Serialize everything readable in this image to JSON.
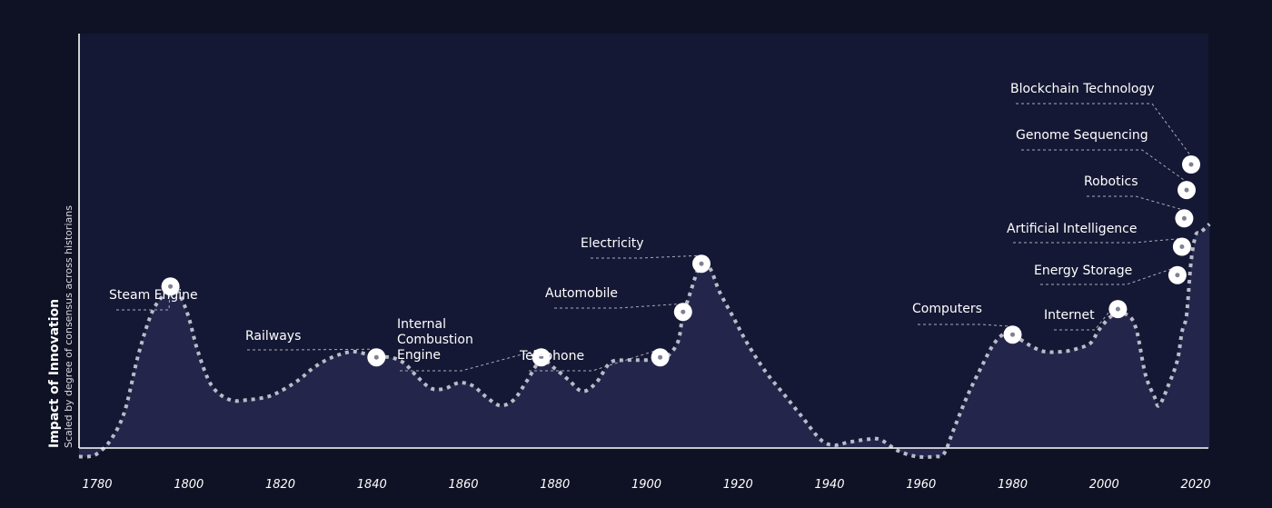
{
  "chart_data": {
    "type": "line",
    "title": "",
    "ylabel": "Impact of Innovation",
    "ylabel_subtitle": "Scaled by degree of consensus across historians",
    "xlabel": "",
    "xlim": [
      1777,
      2024
    ],
    "ylim": [
      0,
      100
    ],
    "x_ticks": [
      1780,
      1800,
      1820,
      1840,
      1860,
      1880,
      1900,
      1920,
      1940,
      1960,
      1980,
      2000,
      2020
    ],
    "grid": false,
    "series": [
      {
        "points": [
          [
            1777,
            -3
          ],
          [
            1779,
            -3
          ],
          [
            1781,
            -2
          ],
          [
            1784,
            3
          ],
          [
            1787,
            13
          ],
          [
            1790,
            33
          ],
          [
            1793,
            48
          ],
          [
            1796,
            55
          ],
          [
            1797,
            57
          ],
          [
            1799,
            54
          ],
          [
            1801,
            46
          ],
          [
            1803,
            34
          ],
          [
            1806,
            22
          ],
          [
            1810,
            17
          ],
          [
            1814,
            17
          ],
          [
            1818,
            18
          ],
          [
            1821,
            20
          ],
          [
            1825,
            24
          ],
          [
            1828,
            28
          ],
          [
            1831,
            31
          ],
          [
            1834,
            33
          ],
          [
            1837,
            34
          ],
          [
            1840,
            33
          ],
          [
            1842,
            32
          ],
          [
            1845,
            32
          ],
          [
            1848,
            30
          ],
          [
            1851,
            25
          ],
          [
            1854,
            21
          ],
          [
            1857,
            21
          ],
          [
            1860,
            23
          ],
          [
            1863,
            22
          ],
          [
            1866,
            18
          ],
          [
            1869,
            15
          ],
          [
            1872,
            17
          ],
          [
            1875,
            24
          ],
          [
            1878,
            31
          ],
          [
            1881,
            28
          ],
          [
            1884,
            24
          ],
          [
            1887,
            20
          ],
          [
            1890,
            23
          ],
          [
            1893,
            30
          ],
          [
            1896,
            31
          ],
          [
            1899,
            31
          ],
          [
            1902,
            31
          ],
          [
            1904,
            31
          ],
          [
            1906,
            33
          ],
          [
            1908,
            38
          ],
          [
            1909,
            48
          ],
          [
            1910,
            52
          ],
          [
            1912,
            62
          ],
          [
            1913,
            66
          ],
          [
            1915,
            63
          ],
          [
            1917,
            55
          ],
          [
            1920,
            46
          ],
          [
            1923,
            37
          ],
          [
            1927,
            27
          ],
          [
            1931,
            19
          ],
          [
            1935,
            11
          ],
          [
            1939,
            3
          ],
          [
            1942,
            1
          ],
          [
            1945,
            2
          ],
          [
            1949,
            3
          ],
          [
            1952,
            3
          ],
          [
            1956,
            -1
          ],
          [
            1960,
            -3
          ],
          [
            1964,
            -3
          ],
          [
            1966,
            -2
          ],
          [
            1968,
            6
          ],
          [
            1971,
            18
          ],
          [
            1974,
            28
          ],
          [
            1977,
            37
          ],
          [
            1980,
            41
          ],
          [
            1982,
            39
          ],
          [
            1985,
            36
          ],
          [
            1988,
            34
          ],
          [
            1992,
            34
          ],
          [
            1995,
            35
          ],
          [
            1998,
            37
          ],
          [
            2000,
            42
          ],
          [
            2003,
            47
          ],
          [
            2006,
            47
          ],
          [
            2008,
            42
          ],
          [
            2010,
            26
          ],
          [
            2012,
            18
          ],
          [
            2013,
            15
          ],
          [
            2015,
            22
          ],
          [
            2017,
            31
          ],
          [
            2018,
            41
          ],
          [
            2019,
            47
          ],
          [
            2020,
            66
          ],
          [
            2021,
            75
          ],
          [
            2022,
            76
          ],
          [
            2024,
            79
          ]
        ]
      }
    ],
    "annotations": [
      {
        "label": "Steam Engine",
        "x": 1797,
        "y": 57
      },
      {
        "label": "Railways",
        "x": 1842,
        "y": 32
      },
      {
        "label": "Internal\nCombustion\nEngine",
        "x": 1878,
        "y": 32
      },
      {
        "label": "Telephone",
        "x": 1904,
        "y": 32
      },
      {
        "label": "Automobile",
        "x": 1909,
        "y": 48
      },
      {
        "label": "Electricity",
        "x": 1913,
        "y": 65
      },
      {
        "label": "Computers",
        "x": 1981,
        "y": 40
      },
      {
        "label": "Internet",
        "x": 2004,
        "y": 49
      },
      {
        "label": "Energy Storage",
        "x": 2017,
        "y": 61
      },
      {
        "label": "Artificial Intelligence",
        "x": 2018,
        "y": 71
      },
      {
        "label": "Robotics",
        "x": 2018.5,
        "y": 81
      },
      {
        "label": "Genome Sequencing",
        "x": 2019,
        "y": 91
      },
      {
        "label": "Blockchain Technology",
        "x": 2020,
        "y": 100
      }
    ],
    "colors": {
      "background": "#0f1224",
      "plot_area": "#151834",
      "area_fill": "#23264a",
      "line": "#b9bcc8",
      "marker": "#ffffff"
    }
  }
}
